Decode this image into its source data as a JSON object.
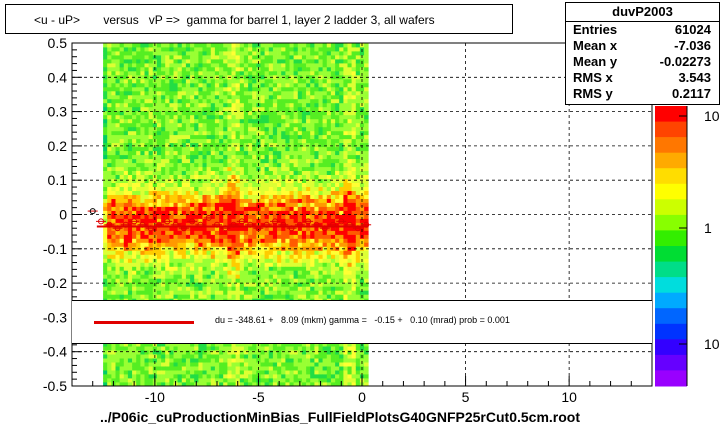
{
  "title": "<u - uP>       versus   vP =>  gamma for barrel 1, layer 2 ladder 3, all wafers",
  "stats": {
    "name": "duvP2003",
    "rows": [
      {
        "key": "Entries",
        "value": "61024"
      },
      {
        "key": "Mean x",
        "value": "-7.036"
      },
      {
        "key": "Mean y",
        "value": "-0.02273"
      },
      {
        "key": "RMS x",
        "value": "3.543"
      },
      {
        "key": "RMS y",
        "value": "0.2117"
      }
    ]
  },
  "legend": {
    "text": "du = -348.61 +   8.09 (mkm) gamma =   -0.15 +   0.10 (mrad) prob = 0.001",
    "line_color": "#e00000"
  },
  "footer": "../P06ic_cuProductionMinBias_FullFieldPlotsG40GNFP25rCut0.5cm.root",
  "colors": {
    "palette": [
      "#ff0000",
      "#ff6600",
      "#ffaa00",
      "#ffff00",
      "#aaff00",
      "#00ee00",
      "#00ee88",
      "#00eeee",
      "#00aaff",
      "#0044ff",
      "#4400ff",
      "#8800ff"
    ],
    "points": "#e00000"
  },
  "chart_data": {
    "type": "heatmap",
    "xlim": [
      -14,
      14
    ],
    "ylim": [
      -0.5,
      0.5
    ],
    "x_ticks": [
      -10,
      -5,
      0,
      5,
      10
    ],
    "y_ticks": [
      -0.5,
      -0.4,
      -0.3,
      -0.2,
      -0.1,
      0,
      0.1,
      0.2,
      0.3,
      0.4,
      0.5
    ],
    "x_tick_labels": [
      "-10",
      "-5",
      "0",
      "5",
      "10"
    ],
    "y_tick_labels": [
      "-0.5",
      "-0.4",
      "-0.3",
      "-0.2",
      "-0.1",
      "0",
      "0.1",
      "0.2",
      "0.3",
      "0.4",
      "0.5"
    ],
    "grid": true,
    "data_x_range": [
      -12.5,
      0.3
    ],
    "colorbar": {
      "scale": "log",
      "tick_labels": [
        "10",
        "1",
        "10"
      ]
    },
    "profile_points": {
      "x": [
        -13,
        -12.6,
        -12.2,
        -11.8,
        -11.4,
        -11.0,
        -10.6,
        -10.2,
        -9.8,
        -9.4,
        -9.0,
        -8.6,
        -8.2,
        -7.8,
        -7.4,
        -7.0,
        -6.6,
        -6.2,
        -5.8,
        -5.4,
        -5.0,
        -4.6,
        -4.2,
        -3.8,
        -3.4,
        -3.0,
        -2.6,
        -2.2,
        -1.8,
        -1.4,
        -1.0,
        -0.6,
        -0.2,
        0.2
      ],
      "y": [
        0.01,
        -0.02,
        -0.03,
        -0.04,
        -0.03,
        -0.02,
        -0.03,
        -0.04,
        -0.03,
        -0.02,
        -0.03,
        -0.04,
        -0.02,
        -0.03,
        -0.01,
        -0.03,
        -0.04,
        -0.03,
        -0.02,
        -0.03,
        -0.04,
        -0.03,
        -0.02,
        -0.03,
        -0.04,
        -0.03,
        -0.02,
        -0.03,
        -0.04,
        -0.03,
        -0.02,
        -0.03,
        -0.04,
        -0.03
      ]
    },
    "fit_line": {
      "x": [
        -12.8,
        0.3
      ],
      "y": [
        -0.035,
        -0.035
      ]
    }
  }
}
